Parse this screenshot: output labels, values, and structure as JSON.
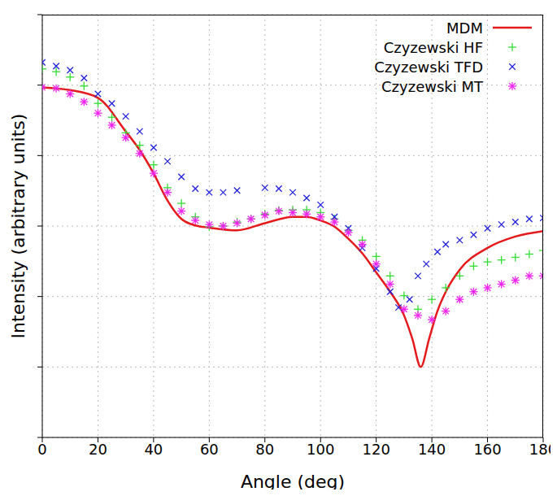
{
  "chart_data": {
    "type": "line",
    "x_label": "Angle (deg)",
    "y_label": "Intensity (arbitrary units)",
    "log": "y",
    "grid": true,
    "legend": "upper right",
    "tick_labels": "x",
    "xlim": [
      0,
      180
    ],
    "xticks": [
      0,
      20,
      40,
      60,
      80,
      100,
      120,
      140,
      160,
      180
    ],
    "ylim": [
      0.0001,
      100
    ],
    "yticks": [
      0.0001,
      0.001,
      0.01,
      0.1,
      1,
      10,
      100
    ],
    "series": [
      {
        "name": "MDM",
        "type": "line",
        "color": "#e41a1c",
        "line_style": "solid",
        "x": [
          0,
          10,
          20,
          30,
          35,
          40,
          45,
          50,
          55,
          60,
          70,
          80,
          90,
          95,
          100,
          105,
          110,
          115,
          120,
          125,
          130,
          133,
          136,
          139,
          142,
          145,
          150,
          160,
          170,
          180
        ],
        "values": [
          9.3,
          8.5,
          6.6,
          2.2,
          1.2,
          0.56,
          0.23,
          0.126,
          0.102,
          0.095,
          0.087,
          0.11,
          0.135,
          0.135,
          0.12,
          0.098,
          0.066,
          0.041,
          0.022,
          0.0117,
          0.0054,
          0.0025,
          0.001,
          0.0025,
          0.0062,
          0.0117,
          0.024,
          0.049,
          0.071,
          0.085
        ]
      },
      {
        "name": "Czyzewski HF",
        "type": "scatter",
        "color": "#33dd33",
        "marker": "plus",
        "x": [
          0,
          5,
          10,
          15,
          20,
          25,
          30,
          35,
          40,
          45,
          50,
          55,
          60,
          65,
          70,
          75,
          80,
          85,
          90,
          95,
          100,
          105,
          110,
          115,
          120,
          125,
          130,
          135,
          140,
          145,
          150,
          155,
          160,
          165,
          170,
          175,
          180
        ],
        "values": [
          17,
          15.5,
          13,
          9.7,
          5.5,
          3.5,
          2.1,
          1.4,
          0.74,
          0.35,
          0.21,
          0.135,
          0.098,
          0.1,
          0.114,
          0.126,
          0.148,
          0.167,
          0.17,
          0.17,
          0.155,
          0.126,
          0.087,
          0.063,
          0.037,
          0.0196,
          0.0103,
          0.0066,
          0.0091,
          0.0133,
          0.0196,
          0.027,
          0.031,
          0.033,
          0.036,
          0.04,
          0.045
        ]
      },
      {
        "name": "Czyzewski TFD",
        "type": "scatter",
        "color": "#2222dd",
        "marker": "cross",
        "x": [
          0,
          5,
          10,
          15,
          20,
          25,
          30,
          35,
          40,
          45,
          50,
          55,
          60,
          65,
          70,
          80,
          85,
          90,
          95,
          100,
          105,
          110,
          115,
          120,
          125,
          128,
          132,
          135,
          138,
          142,
          145,
          150,
          155,
          160,
          165,
          170,
          175,
          180
        ],
        "values": [
          21,
          18.6,
          16.3,
          12.6,
          7.5,
          5.5,
          3.6,
          2.2,
          1.3,
          0.83,
          0.5,
          0.34,
          0.3,
          0.3,
          0.32,
          0.35,
          0.34,
          0.3,
          0.25,
          0.2,
          0.135,
          0.093,
          0.049,
          0.025,
          0.0117,
          0.007,
          0.0091,
          0.0196,
          0.029,
          0.043,
          0.055,
          0.063,
          0.075,
          0.093,
          0.105,
          0.114,
          0.126,
          0.13
        ]
      },
      {
        "name": "Czyzewski MT",
        "type": "scatter",
        "color": "#ee22ee",
        "marker": "star",
        "x": [
          0,
          5,
          10,
          15,
          20,
          25,
          30,
          35,
          40,
          45,
          50,
          55,
          60,
          65,
          70,
          75,
          80,
          85,
          90,
          95,
          100,
          105,
          110,
          115,
          120,
          125,
          130,
          135,
          140,
          145,
          150,
          155,
          160,
          165,
          170,
          175,
          180
        ],
        "values": [
          9.3,
          9,
          7.5,
          5.8,
          4,
          2.7,
          1.8,
          1.07,
          0.56,
          0.3,
          0.163,
          0.12,
          0.105,
          0.1,
          0.11,
          0.126,
          0.143,
          0.163,
          0.155,
          0.148,
          0.135,
          0.114,
          0.081,
          0.055,
          0.029,
          0.015,
          0.0066,
          0.0054,
          0.0047,
          0.0062,
          0.0091,
          0.0117,
          0.0133,
          0.015,
          0.017,
          0.0196,
          0.0196
        ]
      }
    ]
  }
}
